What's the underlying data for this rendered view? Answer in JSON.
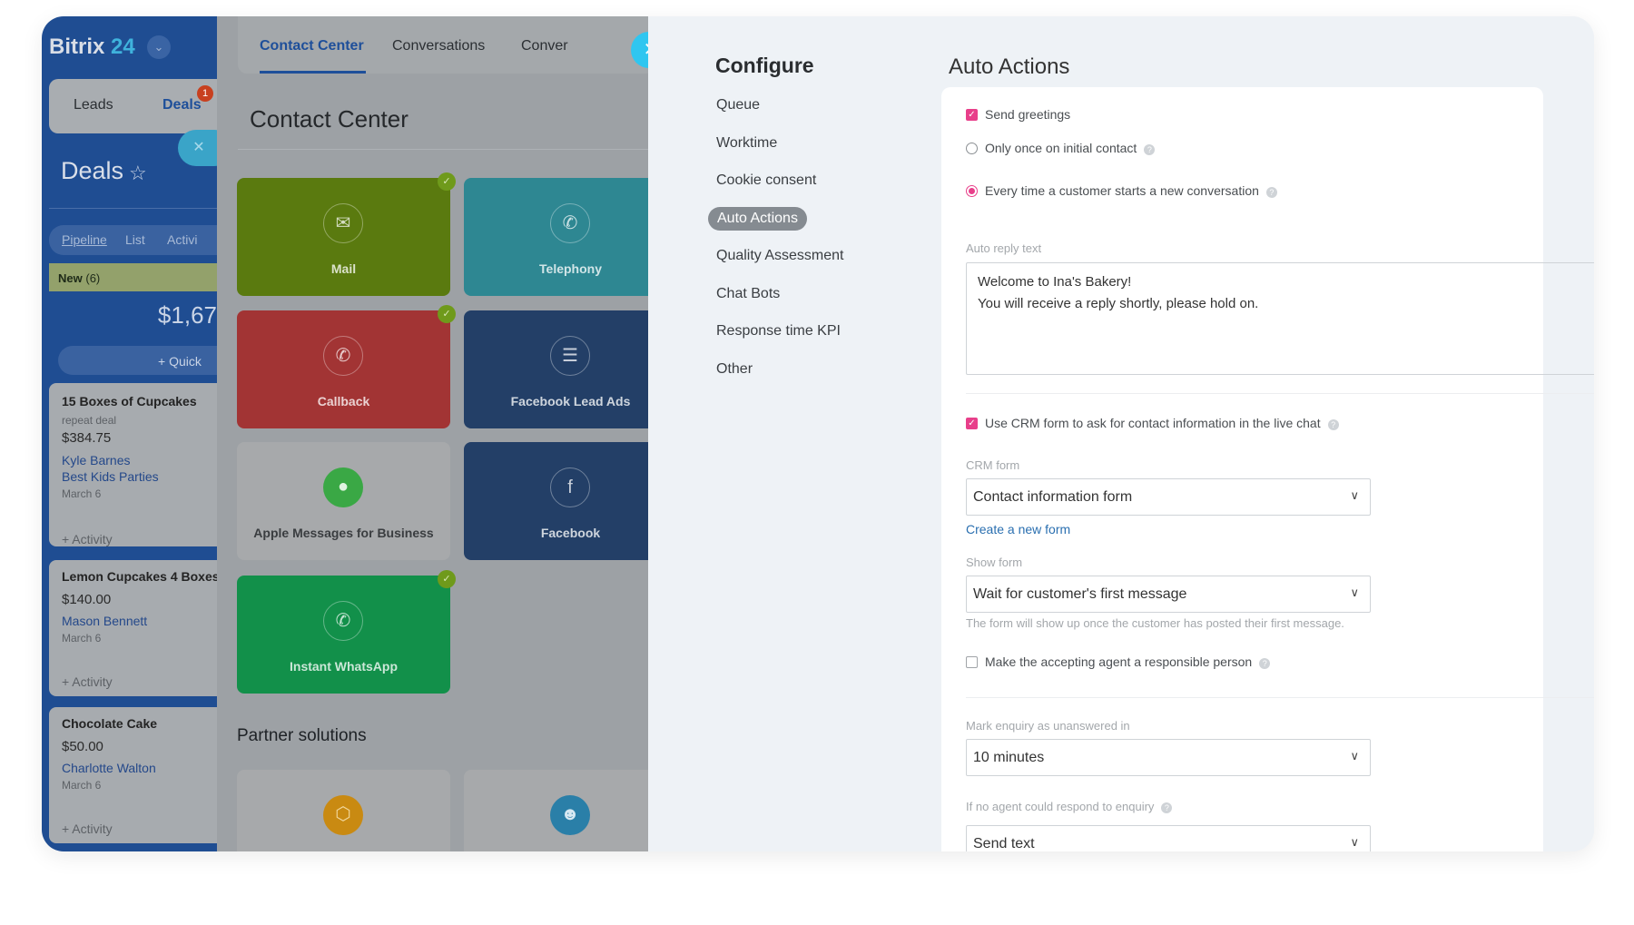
{
  "sidebar": {
    "logo_main": "Bitrix",
    "logo_num": "24",
    "tabs": [
      "Leads",
      "Deals"
    ],
    "deals_badge": "1",
    "title": "Deals",
    "view_tabs": [
      "Pipeline",
      "List",
      "Activi"
    ],
    "column": {
      "name": "New",
      "count": "(6)",
      "amount": "$1,67",
      "quick_label": "+ Quick"
    },
    "cards": [
      {
        "title": "15 Boxes of Cupcakes",
        "subtitle": "repeat deal",
        "price": "$384.75",
        "contact": "Kyle Barnes",
        "company": "Best Kids Parties",
        "date": "March 6",
        "activity": "+ Activity"
      },
      {
        "title": "Lemon Cupcakes 4 Boxes",
        "price": "$140.00",
        "contact": "Mason Bennett",
        "date": "March 6",
        "activity": "+ Activity"
      },
      {
        "title": "Chocolate Cake",
        "price": "$50.00",
        "contact": "Charlotte Walton",
        "date": "March 6",
        "activity": "+ Activity"
      }
    ]
  },
  "contact_center": {
    "tabs": [
      "Contact Center",
      "Conversations",
      "Conver"
    ],
    "title": "Contact Center",
    "partner_title": "Partner solutions",
    "tiles": [
      {
        "label": "Mail",
        "icon": "mail-icon",
        "color": "#5a7a0f",
        "checked": true
      },
      {
        "label": "Telephony",
        "icon": "phone-icon",
        "color": "#2e8792",
        "checked": false
      },
      {
        "label": "Callback",
        "icon": "callback-icon",
        "color": "#a23434",
        "checked": true
      },
      {
        "label": "Facebook Lead Ads",
        "icon": "facebook-lead-ads-icon",
        "color": "#233f67",
        "checked": false
      },
      {
        "label": "Apple Messages for Business",
        "icon": "apple-messages-icon",
        "color": "#a7a9ab",
        "checked": false
      },
      {
        "label": "Facebook",
        "icon": "facebook-icon",
        "color": "#233f67",
        "checked": false
      },
      {
        "label": "Instant WhatsApp",
        "icon": "whatsapp-icon",
        "color": "#12904a",
        "checked": true
      }
    ]
  },
  "configure": {
    "title": "Configure",
    "menu": [
      "Queue",
      "Worktime",
      "Cookie consent",
      "Auto Actions",
      "Quality Assessment",
      "Chat Bots",
      "Response time KPI",
      "Other"
    ],
    "active": "Auto Actions"
  },
  "auto_actions": {
    "title": "Auto Actions",
    "send_greetings": "Send greetings",
    "only_once": "Only once on initial contact",
    "every_time": "Every time a customer starts a new conversation",
    "auto_reply_label": "Auto reply text",
    "auto_reply_text": "Welcome to Ina's Bakery!\nYou will receive a reply shortly, please hold on.",
    "use_crm": "Use CRM form to ask for contact information in the live chat",
    "crm_form_label": "CRM form",
    "crm_form_value": "Contact information form",
    "create_form": "Create a new form",
    "show_form_label": "Show form",
    "show_form_value": "Wait for customer's first message",
    "show_form_hint": "The form will show up once the customer has posted their first message.",
    "make_responsible": "Make the accepting agent a responsible person",
    "mark_label": "Mark enquiry as unanswered in",
    "mark_value": "10 minutes",
    "no_agent_label": "If no agent could respond to enquiry",
    "no_agent_value": "Send text",
    "accent": "#e83f8a"
  }
}
